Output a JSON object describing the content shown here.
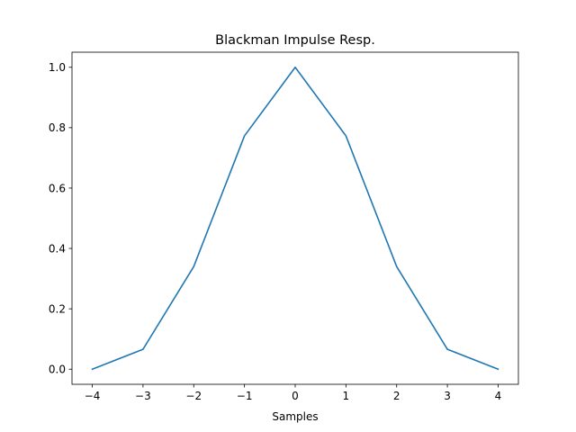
{
  "chart_data": {
    "type": "line",
    "title": "Blackman Impulse Resp.",
    "xlabel": "Samples",
    "ylabel": "",
    "xlim": [
      -4.4,
      4.4
    ],
    "ylim": [
      -0.05,
      1.05
    ],
    "xticks": [
      -4,
      -3,
      -2,
      -1,
      0,
      1,
      2,
      3,
      4
    ],
    "xtick_labels": [
      "−4",
      "−3",
      "−2",
      "−1",
      "0",
      "1",
      "2",
      "3",
      "4"
    ],
    "yticks": [
      0.0,
      0.2,
      0.4,
      0.6,
      0.8,
      1.0
    ],
    "ytick_labels": [
      "0.0",
      "0.2",
      "0.4",
      "0.6",
      "0.8",
      "1.0"
    ],
    "grid": false,
    "series": [
      {
        "color": "#1f77b4",
        "x": [
          -4,
          -3,
          -2,
          -1,
          0,
          1,
          2,
          3,
          4
        ],
        "y": [
          0.0,
          0.066,
          0.34,
          0.773,
          1.0,
          0.773,
          0.34,
          0.066,
          0.0
        ]
      }
    ]
  }
}
